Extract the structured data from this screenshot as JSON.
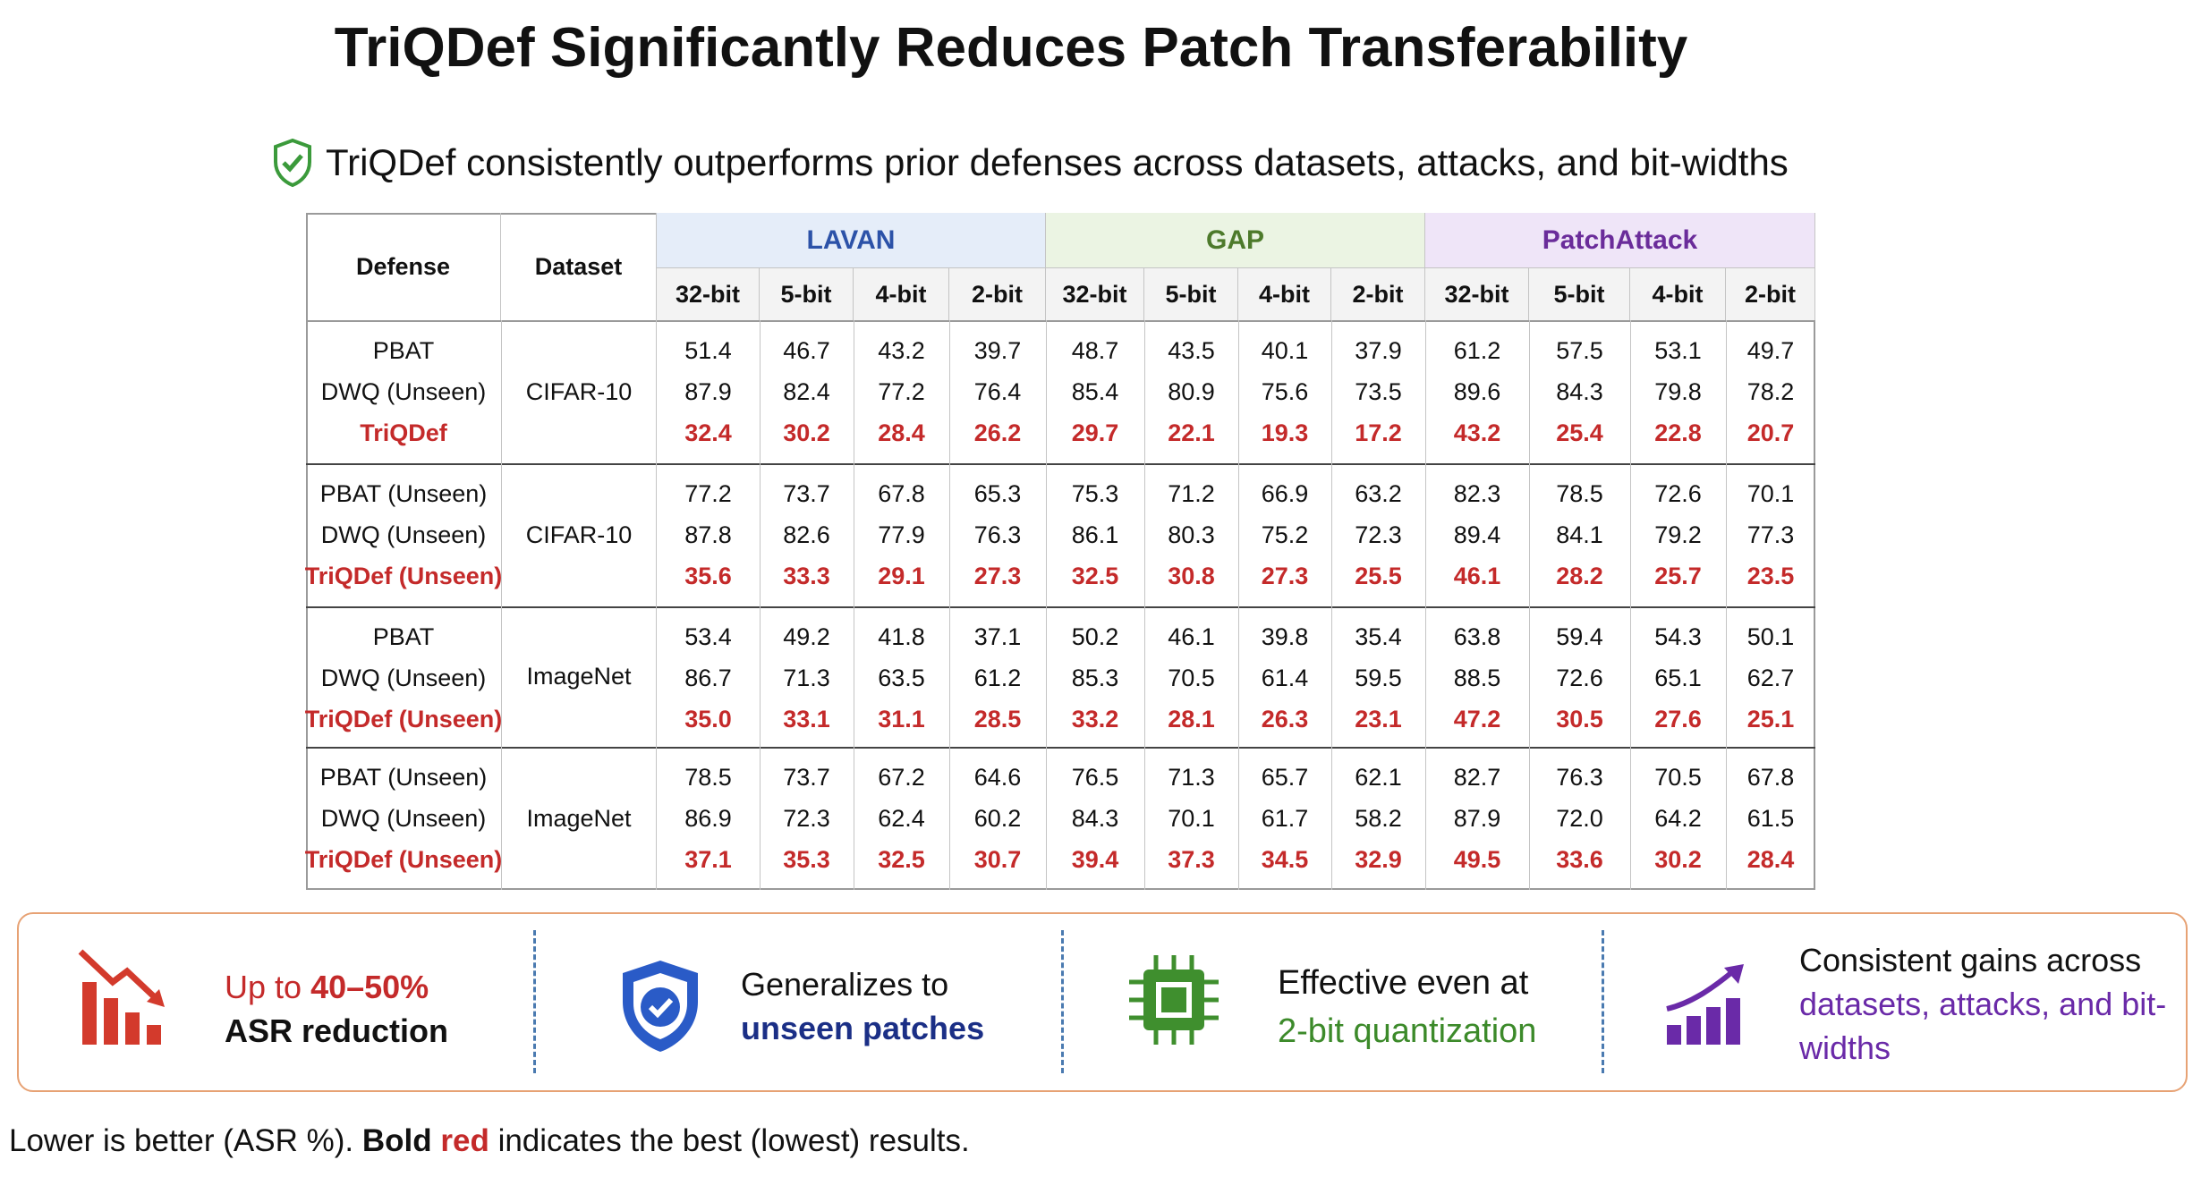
{
  "title": "TriQDef Significantly Reduces Patch Transferability",
  "subtitle": "TriQDef consistently outperforms prior defenses across datasets, attacks, and bit-widths",
  "table": {
    "header": {
      "defense": "Defense",
      "dataset": "Dataset",
      "attacks": [
        "LAVAN",
        "GAP",
        "PatchAttack"
      ],
      "bits": [
        "32-bit",
        "5-bit",
        "4-bit",
        "2-bit"
      ]
    },
    "groups": [
      {
        "defenses": [
          "PBAT",
          "DWQ (Unseen)",
          "TriQDef"
        ],
        "dataset": "CIFAR-10",
        "rows": [
          [
            "51.4",
            "46.7",
            "43.2",
            "39.7",
            "48.7",
            "43.5",
            "40.1",
            "37.9",
            "61.2",
            "57.5",
            "53.1",
            "49.7"
          ],
          [
            "87.9",
            "82.4",
            "77.2",
            "76.4",
            "85.4",
            "80.9",
            "75.6",
            "73.5",
            "89.6",
            "84.3",
            "79.8",
            "78.2"
          ],
          [
            "32.4",
            "30.2",
            "28.4",
            "26.2",
            "29.7",
            "22.1",
            "19.3",
            "17.2",
            "43.2",
            "25.4",
            "22.8",
            "20.7"
          ]
        ]
      },
      {
        "defenses": [
          "PBAT (Unseen)",
          "DWQ (Unseen)",
          "TriQDef (Unseen)"
        ],
        "dataset": "CIFAR-10",
        "rows": [
          [
            "77.2",
            "73.7",
            "67.8",
            "65.3",
            "75.3",
            "71.2",
            "66.9",
            "63.2",
            "82.3",
            "78.5",
            "72.6",
            "70.1"
          ],
          [
            "87.8",
            "82.6",
            "77.9",
            "76.3",
            "86.1",
            "80.3",
            "75.2",
            "72.3",
            "89.4",
            "84.1",
            "79.2",
            "77.3"
          ],
          [
            "35.6",
            "33.3",
            "29.1",
            "27.3",
            "32.5",
            "30.8",
            "27.3",
            "25.5",
            "46.1",
            "28.2",
            "25.7",
            "23.5"
          ]
        ]
      },
      {
        "defenses": [
          "PBAT",
          "DWQ (Unseen)",
          "TriQDef (Unseen)"
        ],
        "dataset": "ImageNet",
        "rows": [
          [
            "53.4",
            "49.2",
            "41.8",
            "37.1",
            "50.2",
            "46.1",
            "39.8",
            "35.4",
            "63.8",
            "59.4",
            "54.3",
            "50.1"
          ],
          [
            "86.7",
            "71.3",
            "63.5",
            "61.2",
            "85.3",
            "70.5",
            "61.4",
            "59.5",
            "88.5",
            "72.6",
            "65.1",
            "62.7"
          ],
          [
            "35.0",
            "33.1",
            "31.1",
            "28.5",
            "33.2",
            "28.1",
            "26.3",
            "23.1",
            "47.2",
            "30.5",
            "27.6",
            "25.1"
          ]
        ]
      },
      {
        "defenses": [
          "PBAT (Unseen)",
          "DWQ (Unseen)",
          "TriQDef (Unseen)"
        ],
        "dataset": "ImageNet",
        "rows": [
          [
            "78.5",
            "73.7",
            "67.2",
            "64.6",
            "76.5",
            "71.3",
            "65.7",
            "62.1",
            "82.7",
            "76.3",
            "70.5",
            "67.8"
          ],
          [
            "86.9",
            "72.3",
            "62.4",
            "60.2",
            "84.3",
            "70.1",
            "61.7",
            "58.2",
            "87.9",
            "72.0",
            "64.2",
            "61.5"
          ],
          [
            "37.1",
            "35.3",
            "32.5",
            "30.7",
            "39.4",
            "37.3",
            "34.5",
            "32.9",
            "49.5",
            "33.6",
            "30.2",
            "28.4"
          ]
        ]
      }
    ]
  },
  "highlights": [
    [
      "Up to",
      "40–50%",
      "ASR reduction"
    ],
    [
      "Generalizes to",
      "unseen patches"
    ],
    [
      "Effective even at",
      "2-bit quantization"
    ],
    [
      "Consistent gains across",
      "datasets, attacks, and bit-widths"
    ]
  ],
  "footnote": [
    "Lower is better (ASR %).",
    "Bold",
    "red",
    "indicates the best (lowest) results."
  ]
}
